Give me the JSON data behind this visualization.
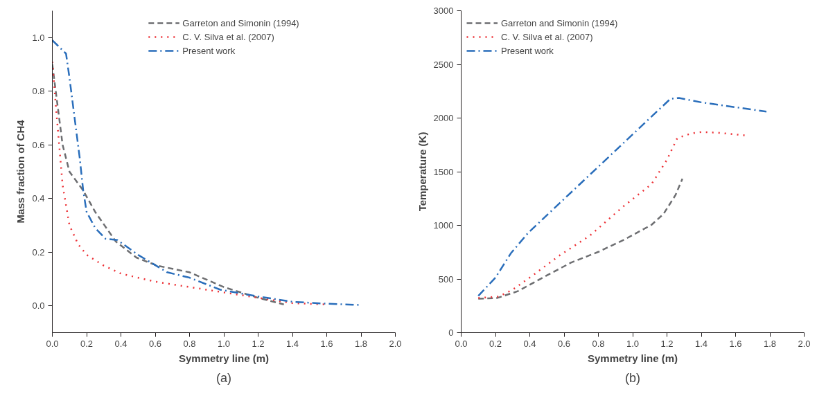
{
  "chart_data": [
    {
      "type": "line",
      "xlabel": "Symmetry line (m)",
      "ylabel": "Mass fraction of CH4",
      "annotations": [
        "(a)"
      ],
      "xlim": [
        0,
        2.0
      ],
      "ylim": [
        -0.1,
        1.1
      ],
      "xticks": [
        {
          "value": 0,
          "label": "0.0"
        },
        0.2,
        0.4,
        0.6,
        0.8,
        {
          "value": 1,
          "label": "1.0"
        },
        1.2,
        1.4,
        1.6,
        1.8,
        {
          "value": 2,
          "label": "2.0"
        }
      ],
      "yticks": [
        {
          "value": 0,
          "label": "0.0"
        },
        0.2,
        0.4,
        0.6,
        0.8,
        {
          "value": 1,
          "label": "1.0"
        }
      ],
      "grid": false,
      "legend": "top",
      "series": [
        {
          "name": "Garreton and Simonin (1994)",
          "color": "#6d6e71",
          "line_style": "dashed",
          "x": [
            0,
            0.02,
            0.04,
            0.06,
            0.1,
            0.18,
            0.25,
            0.37,
            0.49,
            0.61,
            0.8,
            1.0,
            1.2,
            1.35
          ],
          "values": [
            0.9,
            0.8,
            0.7,
            0.6,
            0.5,
            0.43,
            0.35,
            0.24,
            0.18,
            0.15,
            0.125,
            0.07,
            0.03,
            0.005
          ]
        },
        {
          "name": "C. V. Silva et al. (2007)",
          "color": "#ed3237",
          "line_style": "dotted",
          "x": [
            0,
            0.02,
            0.04,
            0.06,
            0.1,
            0.15,
            0.2,
            0.3,
            0.4,
            0.6,
            0.8,
            1.0,
            1.2,
            1.4,
            1.6
          ],
          "values": [
            0.91,
            0.75,
            0.6,
            0.45,
            0.3,
            0.23,
            0.19,
            0.15,
            0.12,
            0.09,
            0.07,
            0.05,
            0.03,
            0.01,
            0.005
          ]
        },
        {
          "name": "Present work",
          "color": "#2a6ebb",
          "line_style": "dashdot",
          "x": [
            0,
            0.08,
            0.1,
            0.13,
            0.16,
            0.18,
            0.2,
            0.25,
            0.31,
            0.38,
            0.5,
            0.67,
            0.8,
            0.98,
            1.2,
            1.4,
            1.6,
            1.8
          ],
          "values": [
            0.99,
            0.94,
            0.85,
            0.7,
            0.55,
            0.43,
            0.35,
            0.29,
            0.25,
            0.245,
            0.19,
            0.125,
            0.105,
            0.06,
            0.035,
            0.015,
            0.008,
            0.003
          ]
        }
      ]
    },
    {
      "type": "line",
      "xlabel": "Symmetry line (m)",
      "ylabel": "Temperature (K)",
      "annotations": [
        "(b)"
      ],
      "xlim": [
        0,
        2.0
      ],
      "ylim": [
        0,
        3000
      ],
      "xticks": [
        {
          "value": 0,
          "label": "0.0"
        },
        0.2,
        0.4,
        0.6,
        0.8,
        {
          "value": 1,
          "label": "1.0"
        },
        1.2,
        1.4,
        1.6,
        1.8,
        {
          "value": 2,
          "label": "2.0"
        }
      ],
      "yticks": [
        0,
        500,
        1000,
        1500,
        2000,
        2500,
        3000
      ],
      "grid": false,
      "legend": "top left",
      "series": [
        {
          "name": "Garreton and Simonin (1994)",
          "color": "#6d6e71",
          "line_style": "dashed",
          "x": [
            0.1,
            0.21,
            0.33,
            0.49,
            0.64,
            0.8,
            0.95,
            1.11,
            1.18,
            1.25,
            1.29
          ],
          "values": [
            316,
            323,
            386,
            525,
            652,
            753,
            866,
            1005,
            1106,
            1283,
            1434
          ]
        },
        {
          "name": "C. V. Silva et al. (2007)",
          "color": "#ed3237",
          "line_style": "dotted",
          "x": [
            0.1,
            0.22,
            0.3,
            0.41,
            0.57,
            0.75,
            0.95,
            1.11,
            1.2,
            1.26,
            1.34,
            1.4,
            1.49,
            1.66
          ],
          "values": [
            323,
            336,
            400,
            525,
            715,
            904,
            1182,
            1384,
            1611,
            1813,
            1856,
            1869,
            1864,
            1838
          ]
        },
        {
          "name": "Present work",
          "color": "#2a6ebb",
          "line_style": "dashdot",
          "x": [
            0.1,
            0.2,
            0.29,
            0.39,
            1.22,
            1.27,
            1.4,
            1.78
          ],
          "values": [
            343,
            513,
            740,
            929,
            2179,
            2187,
            2146,
            2060
          ]
        }
      ]
    }
  ]
}
